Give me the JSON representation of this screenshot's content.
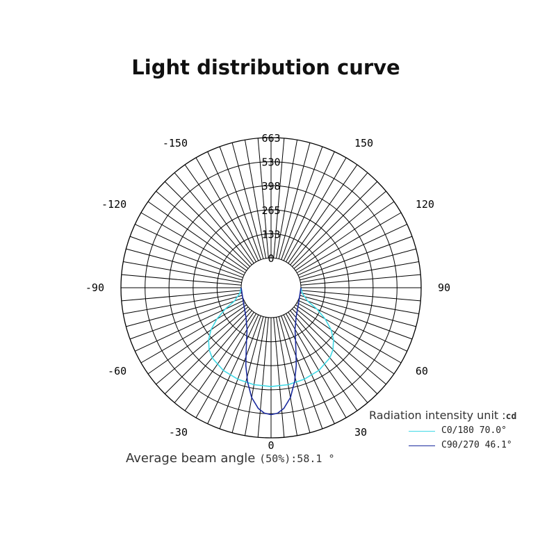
{
  "chart_data": {
    "type": "polar",
    "title": "Light distribution curve",
    "radial_max": 663,
    "radial_ticks": [
      0,
      133,
      265,
      398,
      530,
      663
    ],
    "radial_tick_labels": [
      "0",
      "133",
      "265",
      "398",
      "530",
      "663"
    ],
    "angle_labels": [
      "0",
      "30",
      "60",
      "90",
      "120",
      "150",
      "-150",
      "-120",
      "-90",
      "-60",
      "-30"
    ],
    "angle_label_values": [
      0,
      30,
      60,
      90,
      120,
      150,
      -150,
      -120,
      -90,
      -60,
      -30
    ],
    "unit_label": "Radiation intensity unit :",
    "unit": "cd",
    "series": [
      {
        "name": "C0/180 70.0°",
        "color": "#3fd9e6",
        "angles": [
          0,
          10,
          20,
          30,
          40,
          45,
          50,
          55,
          60,
          65,
          70,
          80,
          90
        ],
        "values": [
          380,
          378,
          372,
          362,
          340,
          318,
          285,
          240,
          180,
          115,
          50,
          10,
          0
        ]
      },
      {
        "name": "C90/270 46.1°",
        "color": "#1a2a9e",
        "angles": [
          0,
          3,
          6,
          10,
          14,
          18,
          22,
          26,
          30,
          35,
          40,
          50,
          60,
          90
        ],
        "values": [
          535,
          528,
          505,
          450,
          370,
          285,
          200,
          142,
          100,
          72,
          50,
          25,
          10,
          0
        ]
      }
    ]
  },
  "footer": {
    "label": "Average beam angle",
    "percent": "(50%)",
    "value": ":58.1 °"
  }
}
